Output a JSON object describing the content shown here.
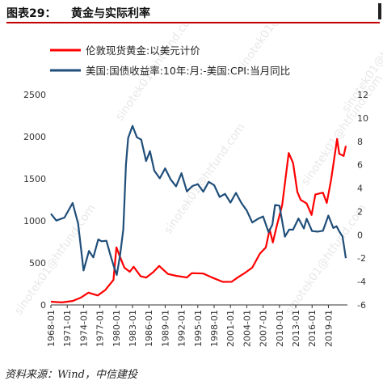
{
  "header": {
    "figure_number": "图表29：",
    "title": "黄金与实际利率"
  },
  "source": "资料来源：Wind，中信建投",
  "watermark": "sinotek01@htfund.com",
  "colors": {
    "gold": "#ff0000",
    "rate": "#1f4e79",
    "accent": "#c00000"
  },
  "chart_data": {
    "type": "line",
    "x_ticks": [
      "1968-01",
      "1971-01",
      "1974-01",
      "1977-01",
      "1980-01",
      "1983-01",
      "1986-01",
      "1989-01",
      "1992-01",
      "1995-01",
      "1998-01",
      "2001-01",
      "2004-01",
      "2007-01",
      "2010-01",
      "2013-01",
      "2016-01",
      "2019-01"
    ],
    "y_left": {
      "min": 0,
      "max": 2500,
      "ticks": [
        "0",
        "500",
        "1000",
        "1500",
        "2000",
        "2500"
      ]
    },
    "y_right": {
      "min": -6,
      "max": 12,
      "ticks": [
        "-6",
        "-4",
        "-2",
        "0",
        "2",
        "4",
        "6",
        "8",
        "10",
        "12"
      ]
    },
    "series": [
      {
        "name": "伦敦现货黄金:以美元计价",
        "axis": "left",
        "color": "#ff0000",
        "x": [
          1968.0,
          1970.0,
          1972.0,
          1973.5,
          1974.9,
          1976.6,
          1978.0,
          1979.5,
          1980.05,
          1980.6,
          1981.5,
          1982.5,
          1983.2,
          1984.5,
          1985.5,
          1986.8,
          1987.9,
          1989.5,
          1991.0,
          1993.0,
          1993.9,
          1996.0,
          1997.5,
          1999.6,
          2001.2,
          2002.5,
          2003.5,
          2005.0,
          2006.4,
          2007.5,
          2008.2,
          2008.8,
          2009.5,
          2010.5,
          2011.7,
          2012.5,
          2013.3,
          2013.9,
          2015.0,
          2015.9,
          2016.6,
          2018.0,
          2018.7,
          2019.5,
          2020.6,
          2021.0,
          2021.8,
          2022.2
        ],
        "y": [
          38,
          36,
          58,
          100,
          160,
          125,
          185,
          300,
          680,
          580,
          430,
          380,
          440,
          330,
          320,
          390,
          470,
          380,
          360,
          340,
          390,
          380,
          330,
          270,
          265,
          320,
          360,
          430,
          600,
          680,
          900,
          750,
          950,
          1200,
          1820,
          1700,
          1350,
          1250,
          1200,
          1060,
          1300,
          1320,
          1200,
          1480,
          1970,
          1800,
          1780,
          1890
        ]
      },
      {
        "name": "美国:国债收益率:10年:月:-美国:CPI:当月同比",
        "axis": "right",
        "color": "#1f4e79",
        "x": [
          1968.0,
          1969.0,
          1970.5,
          1972.0,
          1973.0,
          1974.0,
          1975.0,
          1975.8,
          1976.7,
          1977.3,
          1978.2,
          1979.0,
          1979.6,
          1980.1,
          1980.7,
          1981.3,
          1981.8,
          1982.2,
          1983.0,
          1983.8,
          1984.6,
          1985.5,
          1986.2,
          1987.0,
          1988.0,
          1989.0,
          1990.0,
          1991.0,
          1992.0,
          1993.0,
          1994.0,
          1995.0,
          1996.0,
          1997.0,
          1998.0,
          1999.0,
          2000.0,
          2001.0,
          2002.0,
          2003.0,
          2004.0,
          2005.0,
          2006.0,
          2007.0,
          2008.0,
          2008.7,
          2009.2,
          2010.0,
          2011.0,
          2011.8,
          2012.5,
          2013.5,
          2014.5,
          2015.0,
          2016.0,
          2017.0,
          2018.0,
          2019.0,
          2019.9,
          2020.5,
          2021.0,
          2021.6,
          2022.2
        ],
        "y": [
          1.8,
          1.2,
          1.4,
          2.6,
          0.8,
          -3.2,
          -1.5,
          -2.0,
          -0.4,
          -0.5,
          -0.4,
          -1.7,
          -2.6,
          -3.3,
          -1.7,
          0.5,
          6.0,
          8.2,
          9.2,
          8.2,
          8.0,
          6.2,
          7.1,
          5.5,
          4.9,
          5.8,
          4.9,
          4.3,
          5.4,
          3.8,
          4.2,
          4.3,
          3.6,
          4.4,
          4.1,
          3.1,
          3.4,
          2.7,
          3.6,
          2.8,
          2.2,
          1.2,
          1.5,
          1.7,
          0.3,
          0.9,
          2.5,
          2.4,
          -0.3,
          0.3,
          0.3,
          1.3,
          0.5,
          1.4,
          0.4,
          0.4,
          0.5,
          1.8,
          0.7,
          0.8,
          0.3,
          -0.2,
          -2.0
        ]
      }
    ]
  }
}
